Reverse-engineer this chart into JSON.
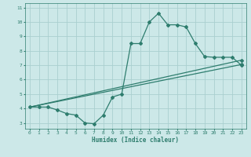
{
  "xlabel": "Humidex (Indice chaleur)",
  "xlim": [
    -0.5,
    23.5
  ],
  "ylim": [
    2.6,
    11.3
  ],
  "xticks": [
    0,
    1,
    2,
    3,
    4,
    5,
    6,
    7,
    8,
    9,
    10,
    11,
    12,
    13,
    14,
    15,
    16,
    17,
    18,
    19,
    20,
    21,
    22,
    23
  ],
  "yticks": [
    3,
    4,
    5,
    6,
    7,
    8,
    9,
    10,
    11
  ],
  "bg_color": "#cce8e8",
  "line_color": "#2e7d6e",
  "grid_color": "#aacfcf",
  "line1_x": [
    0,
    1,
    2,
    3,
    4,
    5,
    6,
    7,
    8,
    9,
    10,
    11,
    12,
    13,
    14,
    15,
    16,
    17,
    18,
    19,
    20,
    21,
    22,
    23
  ],
  "line1_y": [
    4.1,
    4.1,
    4.1,
    3.9,
    3.65,
    3.55,
    3.0,
    2.95,
    3.55,
    4.8,
    5.0,
    8.5,
    8.5,
    10.0,
    10.6,
    9.8,
    9.8,
    9.65,
    8.5,
    7.6,
    7.55,
    7.55,
    7.55,
    7.0
  ],
  "line2_x": [
    0,
    23
  ],
  "line2_y": [
    4.1,
    7.05
  ],
  "line3_x": [
    0,
    23
  ],
  "line3_y": [
    4.1,
    7.35
  ]
}
